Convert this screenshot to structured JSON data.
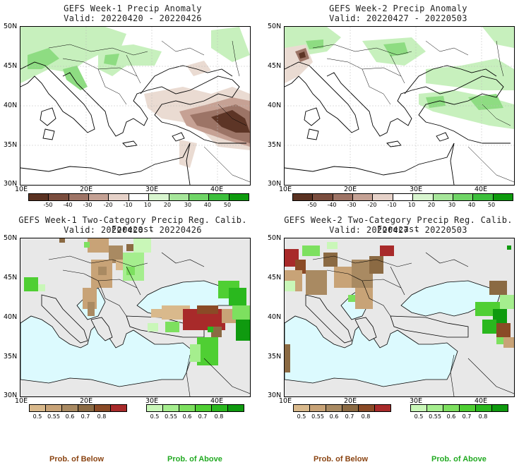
{
  "panels": [
    {
      "title": "GEFS Week-1 Precip Anomaly",
      "valid": "Valid: 20220420 - 20220426"
    },
    {
      "title": "GEFS Week-2 Precip Anomaly",
      "valid": "Valid: 20220427 - 20220503"
    },
    {
      "title": "GEFS Week-1 Two-Category Precip Reg. Calib. Forecast",
      "valid": "Valid: 20220420 - 20220426"
    },
    {
      "title": "GEFS Week-2 Two-Category Precip Reg. Calib. Forecast",
      "valid": "Valid: 20220427 - 20220503"
    }
  ],
  "lat_ticks": [
    "50N",
    "45N",
    "40N",
    "35N",
    "30N"
  ],
  "lon_ticks": [
    "10E",
    "20E",
    "30E",
    "40E"
  ],
  "anomaly_colorbar": {
    "labels": [
      "-50",
      "-40",
      "-30",
      "-20",
      "-10",
      "10",
      "20",
      "30",
      "40",
      "50"
    ],
    "colors": [
      "#5a3222",
      "#7a4d3e",
      "#9e7466",
      "#c4a194",
      "#e6d2c9",
      "#ffffff",
      "#d8f5cf",
      "#a6e69a",
      "#6fd566",
      "#3cbf3c",
      "#0d9a0d"
    ]
  },
  "below_colorbar": {
    "labels": [
      "0.5",
      "0.55",
      "0.6",
      "0.7",
      "0.8"
    ],
    "colors": [
      "#d9b98c",
      "#c8a377",
      "#a98a62",
      "#8b6a43",
      "#8a4a26",
      "#a82a2a"
    ]
  },
  "above_colorbar": {
    "labels": [
      "0.5",
      "0.55",
      "0.6",
      "0.7",
      "0.8"
    ],
    "colors": [
      "#c9f7b8",
      "#a5ee8e",
      "#7de05f",
      "#4fcf33",
      "#2ab81e",
      "#0f9a0f"
    ]
  },
  "legend": {
    "below": "Prob. of Below",
    "above": "Prob. of Above"
  },
  "colors": {
    "below_text": "#8b4513",
    "above_text": "#22aa22",
    "sea": "#dcfafe",
    "land_gray": "#e8e8e8"
  }
}
